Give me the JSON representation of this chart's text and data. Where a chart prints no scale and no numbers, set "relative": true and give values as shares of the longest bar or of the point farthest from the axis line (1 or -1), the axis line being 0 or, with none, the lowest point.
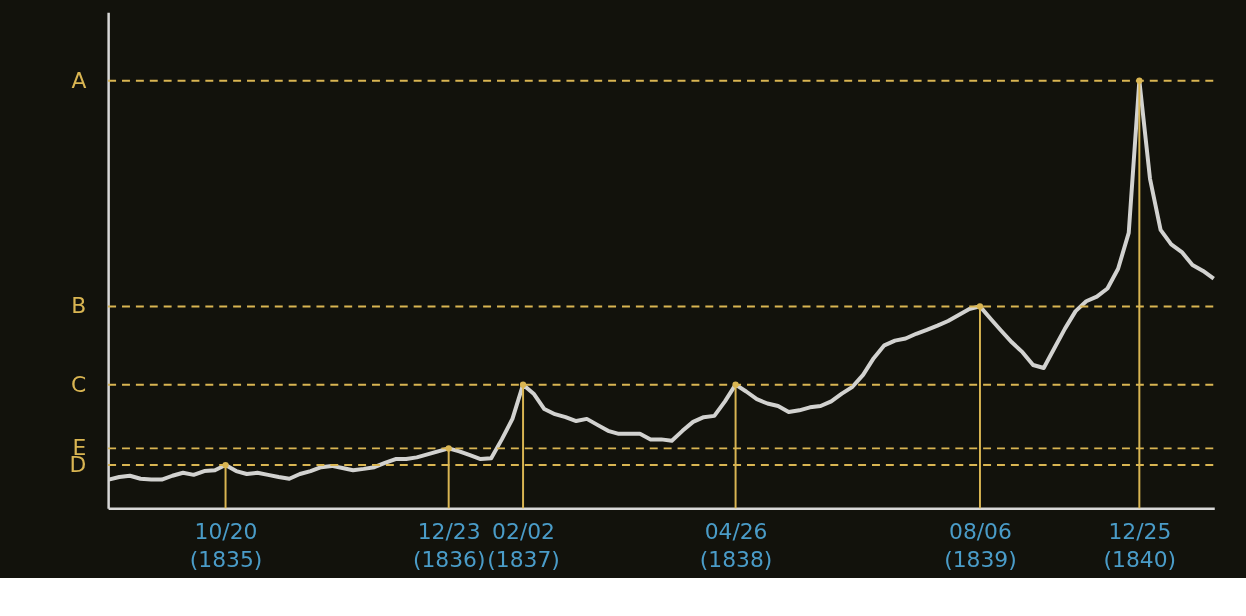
{
  "chart_data": {
    "type": "line",
    "relative": true,
    "categories": [
      null,
      null,
      null,
      null,
      null,
      null,
      null,
      null,
      null,
      null,
      null,
      "10/20 (1835)",
      null,
      null,
      null,
      null,
      null,
      null,
      null,
      null,
      null,
      null,
      null,
      null,
      null,
      null,
      null,
      null,
      null,
      null,
      null,
      null,
      "12/23 (1836)",
      null,
      null,
      null,
      null,
      null,
      null,
      "02/02 (1837)",
      null,
      null,
      null,
      null,
      null,
      null,
      null,
      null,
      null,
      null,
      null,
      null,
      null,
      null,
      null,
      null,
      null,
      null,
      null,
      "04/26 (1838)",
      null,
      null,
      null,
      null,
      null,
      null,
      null,
      null,
      null,
      null,
      null,
      null,
      null,
      null,
      null,
      null,
      null,
      null,
      null,
      null,
      null,
      null,
      "08/06 (1839)",
      null,
      null,
      null,
      null,
      null,
      null,
      null,
      null,
      null,
      null,
      null,
      null,
      null,
      null,
      "12/25 (1840)",
      null,
      null,
      null,
      null,
      null,
      null,
      null
    ],
    "series": [
      {
        "color": "#d2d2d0",
        "values": [
          0.067,
          0.073,
          0.076,
          0.069,
          0.067,
          0.067,
          0.076,
          0.083,
          0.078,
          0.087,
          0.089,
          0.101,
          0.087,
          0.08,
          0.083,
          0.078,
          0.073,
          0.069,
          0.08,
          0.087,
          0.096,
          0.099,
          0.094,
          0.089,
          0.092,
          0.096,
          0.106,
          0.115,
          0.115,
          0.119,
          0.126,
          0.133,
          0.14,
          0.133,
          0.124,
          0.115,
          0.117,
          0.161,
          0.209,
          0.289,
          0.268,
          0.232,
          0.22,
          0.213,
          0.204,
          0.209,
          0.195,
          0.181,
          0.174,
          0.174,
          0.174,
          0.161,
          0.161,
          0.158,
          0.181,
          0.202,
          0.213,
          0.216,
          0.25,
          0.289,
          0.273,
          0.255,
          0.245,
          0.239,
          0.225,
          0.229,
          0.236,
          0.239,
          0.25,
          0.268,
          0.284,
          0.312,
          0.351,
          0.381,
          0.392,
          0.397,
          0.408,
          0.417,
          0.427,
          0.438,
          0.452,
          0.466,
          0.472,
          0.443,
          0.415,
          0.388,
          0.365,
          0.335,
          0.328,
          0.374,
          0.42,
          0.461,
          0.484,
          0.495,
          0.514,
          0.56,
          0.644,
          1,
          0.771,
          0.651,
          0.617,
          0.599,
          0.569,
          0.555,
          0.537
        ]
      }
    ],
    "ref_lines": [
      {
        "axis": "y",
        "value": 1,
        "label": "A",
        "color": "#d9b552",
        "line_style": "dashed"
      },
      {
        "axis": "y",
        "value": 0.472,
        "label": "B",
        "color": "#d9b552",
        "line_style": "dashed"
      },
      {
        "axis": "y",
        "value": 0.289,
        "label": "C",
        "color": "#d9b552",
        "line_style": "dashed"
      },
      {
        "axis": "y",
        "value": 0.14,
        "label": "E",
        "color": "#d9b552",
        "line_style": "dashed"
      },
      {
        "axis": "y",
        "value": 0.101,
        "label": "D",
        "color": "#d9b552",
        "line_style": "dashed"
      },
      {
        "axis": "x",
        "value": "10/20 (1835)",
        "color": "#d9b552"
      },
      {
        "axis": "x",
        "value": "12/23 (1836)",
        "color": "#d9b552"
      },
      {
        "axis": "x",
        "value": "02/02 (1837)",
        "color": "#d9b552"
      },
      {
        "axis": "x",
        "value": "04/26 (1838)",
        "color": "#d9b552"
      },
      {
        "axis": "x",
        "value": "08/06 (1839)",
        "color": "#d9b552"
      },
      {
        "axis": "x",
        "value": "12/25 (1840)",
        "color": "#d9b552"
      }
    ],
    "line_style": "solid"
  }
}
